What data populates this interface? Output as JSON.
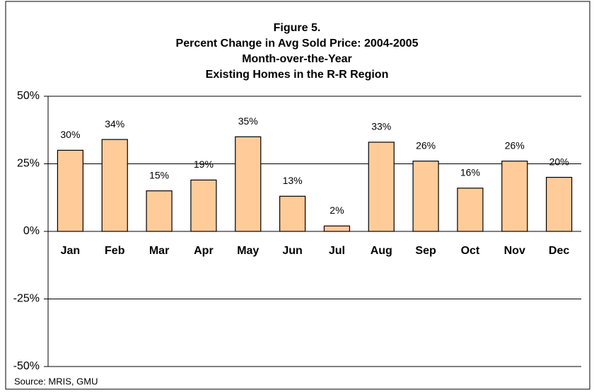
{
  "chart_data": {
    "type": "bar",
    "title": [
      "Figure 5.",
      "Percent Change in Avg Sold Price: 2004-2005",
      "Month-over-the-Year",
      "Existing Homes in the R-R Region"
    ],
    "categories": [
      "Jan",
      "Feb",
      "Mar",
      "Apr",
      "May",
      "Jun",
      "Jul",
      "Aug",
      "Sep",
      "Oct",
      "Nov",
      "Dec"
    ],
    "values": [
      30,
      34,
      15,
      19,
      35,
      13,
      2,
      33,
      26,
      16,
      26,
      20
    ],
    "value_labels": [
      "30%",
      "34%",
      "15%",
      "19%",
      "35%",
      "13%",
      "2%",
      "33%",
      "26%",
      "16%",
      "26%",
      "20%"
    ],
    "color": "#ffcc99",
    "ylim": [
      -50,
      50
    ],
    "yticks": [
      {
        "value": -50,
        "label": "-50%"
      },
      {
        "value": -25,
        "label": "-25%"
      },
      {
        "value": 0,
        "label": "0%"
      },
      {
        "value": 25,
        "label": "25%"
      },
      {
        "value": 50,
        "label": "50%"
      }
    ],
    "grid": true,
    "source": "Source: MRIS, GMU"
  }
}
